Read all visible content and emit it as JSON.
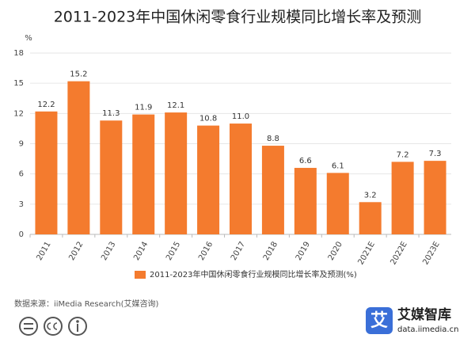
{
  "chart_data": {
    "type": "bar",
    "title": "2011-2023年中国休闲零食行业规模同比增长率及预测",
    "y_unit": "%",
    "categories": [
      "2011",
      "2012",
      "2013",
      "2014",
      "2015",
      "2016",
      "2017",
      "2018",
      "2019",
      "2020",
      "2021E",
      "2022E",
      "2023E"
    ],
    "series": [
      {
        "name": "2011-2023年中国休闲零食行业规模同比增长率及预测(%)",
        "color": "#f47b2e",
        "values": [
          12.2,
          15.2,
          11.3,
          11.9,
          12.1,
          10.8,
          11.0,
          8.8,
          6.6,
          6.1,
          3.2,
          7.2,
          7.3
        ],
        "value_labels": [
          "12.2",
          "15.2",
          "11.3",
          "11.9",
          "12.1",
          "10.8",
          "11.0",
          "8.8",
          "6.6",
          "6.1",
          "3.2",
          "7.2",
          "7.3"
        ]
      }
    ],
    "ylim": [
      0,
      18
    ],
    "yticks": [
      0,
      3,
      6,
      9,
      12,
      15,
      18
    ],
    "grid": true
  },
  "footer": {
    "source": "数据来源：iiMedia Research(艾媒咨询)",
    "brand_mark": "艾",
    "brand_name": "艾媒智库",
    "brand_url": "data.iimedia.cn"
  }
}
